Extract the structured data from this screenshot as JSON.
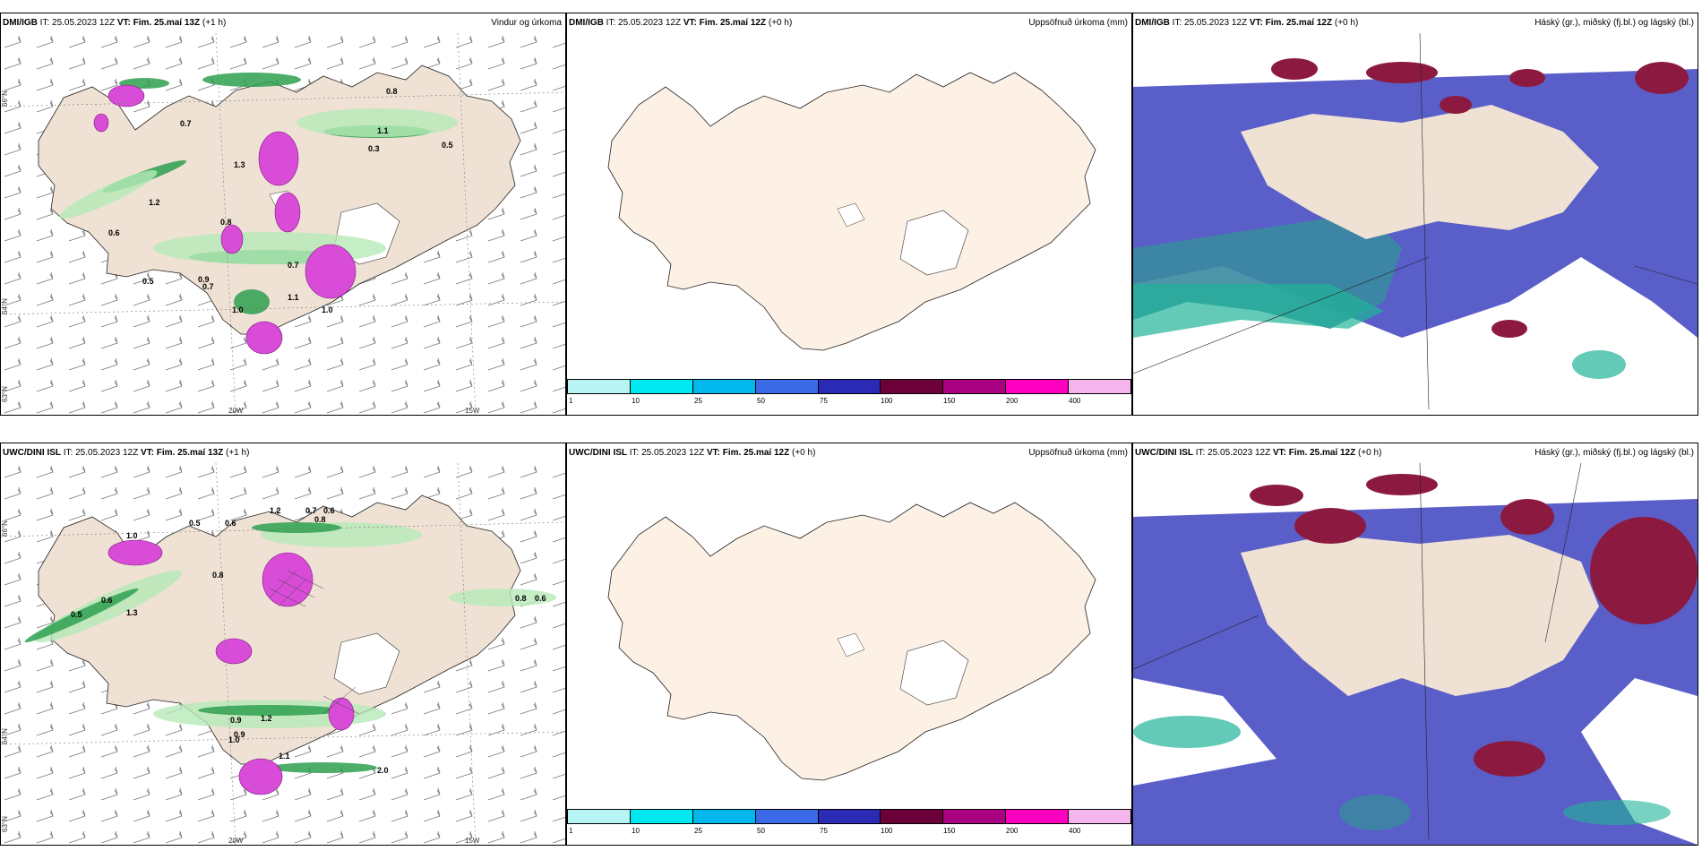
{
  "panels": {
    "p1": {
      "src": "DMI/IGB",
      "it": " IT: 25.05.2023 12Z ",
      "vt": "VT: Fim. 25.maí 13Z",
      "lead": " (+1 h)",
      "right": "Vindur og úrkoma"
    },
    "p2": {
      "src": "DMI/IGB",
      "it": " IT: 25.05.2023 12Z ",
      "vt": "VT: Fim. 25.maí 12Z",
      "lead": " (+0 h)",
      "right": "Uppsöfnuð úrkoma (mm)"
    },
    "p3": {
      "src": "DMI/IGB",
      "it": " IT: 25.05.2023 12Z ",
      "vt": "VT: Fim. 25.maí 12Z",
      "lead": " (+0 h)",
      "right": "Háský (gr.), miðský (fj.bl.) og lágský (bl.)"
    },
    "p4": {
      "src": "UWC/DINI ISL",
      "it": " IT: 25.05.2023 12Z ",
      "vt": "VT: Fim. 25.maí 13Z",
      "lead": " (+1 h)",
      "right": ""
    },
    "p5": {
      "src": "UWC/DINI ISL",
      "it": " IT: 25.05.2023 12Z ",
      "vt": "VT: Fim. 25.maí 12Z",
      "lead": " (+0 h)",
      "right": "Uppsöfnuð úrkoma (mm)"
    },
    "p6": {
      "src": "UWC/DINI ISL",
      "it": " IT: 25.05.2023 12Z ",
      "vt": "VT: Fim. 25.maí 12Z",
      "lead": " (+0 h)",
      "right": "Háský (gr.), miðský (fj.bl.) og lágský (bl.)"
    }
  },
  "axis": {
    "lon20": "20W",
    "lon15": "15W",
    "lat66": "66°N",
    "lat64": "64°N",
    "lat63": "63°N"
  },
  "colorbar": {
    "labels": [
      "1",
      "10",
      "25",
      "50",
      "75",
      "100",
      "150",
      "200",
      "400"
    ],
    "colors": [
      "#b8f4f4",
      "#00e8f0",
      "#00b8ec",
      "#3a6ae6",
      "#2a2ab4",
      "#6c0038",
      "#aa0082",
      "#ff00c0",
      "#f4b4ec"
    ]
  },
  "precip_values": {
    "p1": [
      "0.7",
      "1.3",
      "0.3",
      "0.8",
      "1.1",
      "0.5",
      "0.9",
      "1.2",
      "0.8",
      "1.0",
      "0.7",
      "0.7",
      "1.1",
      "0.5",
      "1.0",
      "0.6"
    ],
    "p4": [
      "1.2",
      "0.7",
      "0.8",
      "0.6",
      "0.9",
      "1.0",
      "0.5",
      "1.3",
      "0.6",
      "0.8",
      "0.5",
      "0.6",
      "0.9",
      "1.2",
      "1.1",
      "0.8",
      "0.6",
      "1.0",
      "2.0"
    ]
  },
  "colors": {
    "land": "#efe2d4",
    "land_light": "#fdf0e4",
    "green": "#2ea050",
    "lightgreen": "#b6eab8",
    "magenta": "#d84cd8",
    "cloud_blue": "#5a5ec8",
    "cloud_red": "#8c1a40",
    "cloud_green": "#20b498"
  }
}
